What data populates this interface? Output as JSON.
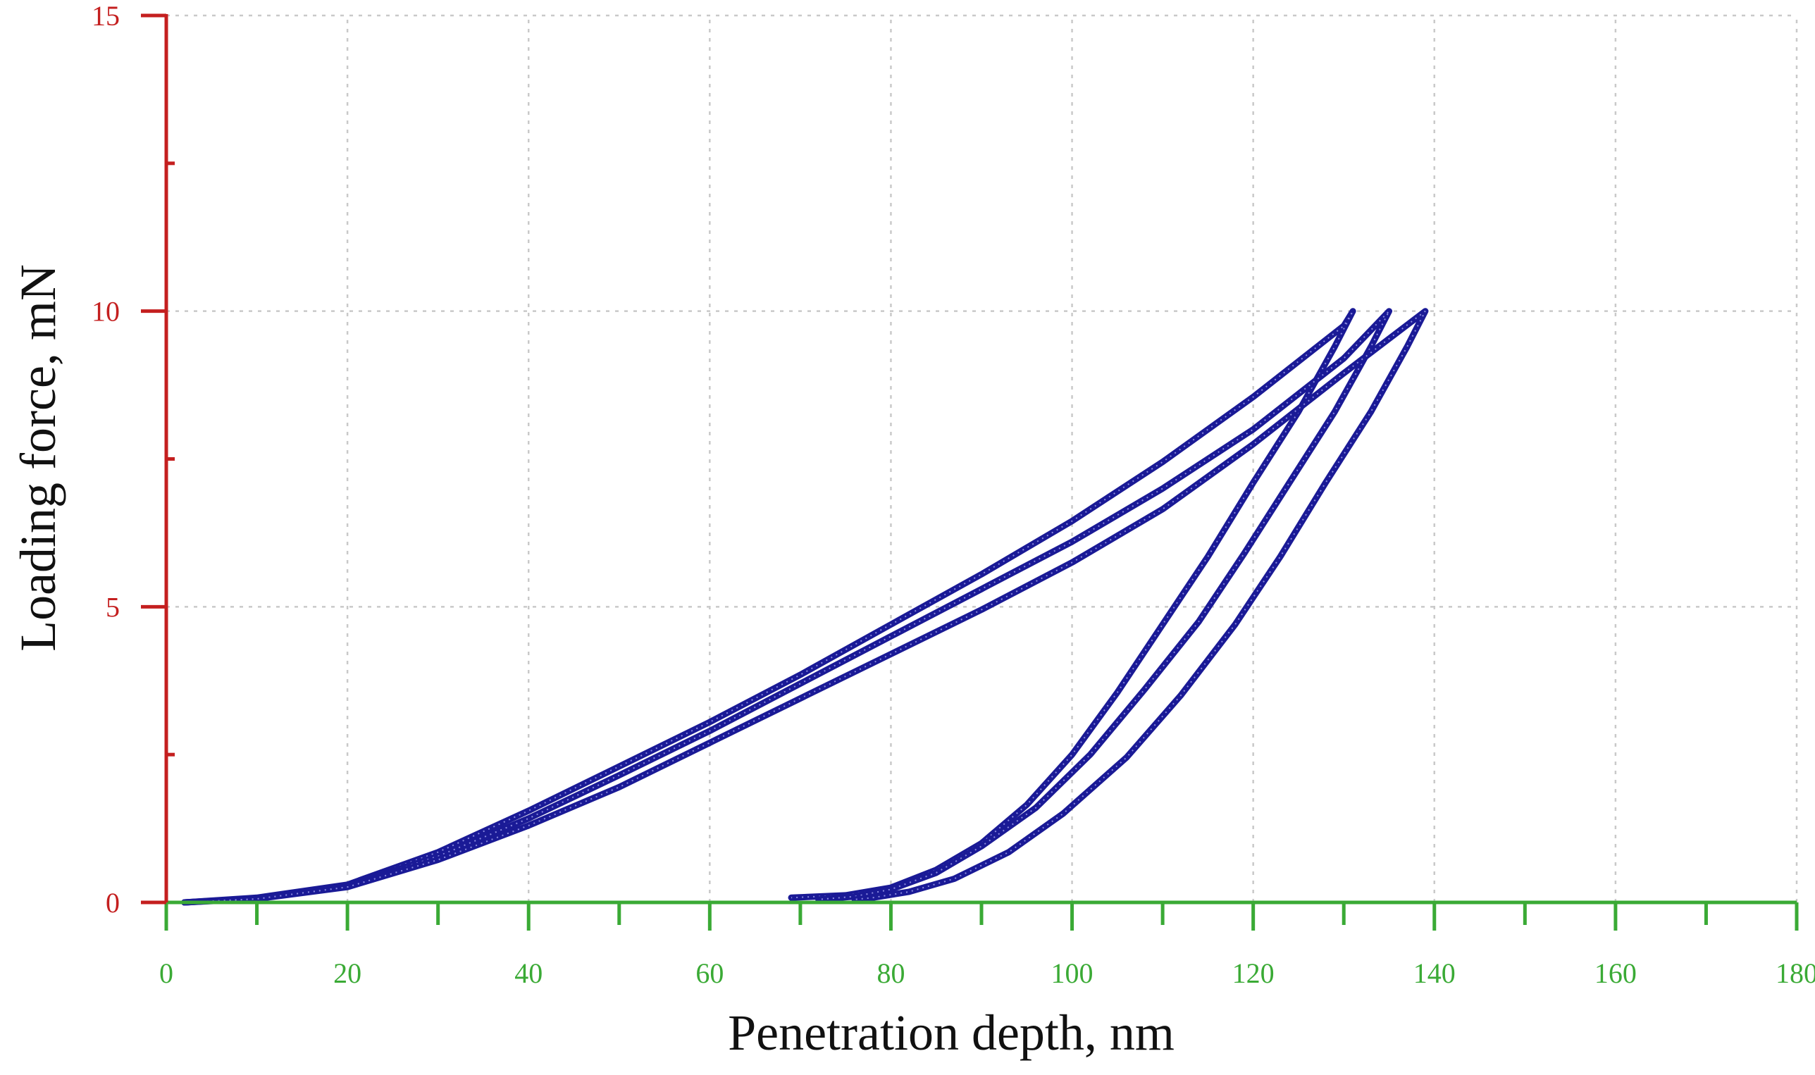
{
  "chart_data": {
    "type": "line",
    "title": "",
    "xlabel": "Penetration depth, nm",
    "ylabel": "Loading force, mN",
    "xlim": [
      0,
      180
    ],
    "ylim": [
      0,
      15
    ],
    "xticks_major": [
      0,
      20,
      40,
      60,
      80,
      100,
      120,
      140,
      160,
      180
    ],
    "xtick_labels": [
      "0",
      "20",
      "40",
      "60",
      "80",
      "100",
      "120",
      "140",
      "160",
      "180"
    ],
    "xticks_minor": [
      10,
      30,
      50,
      70,
      90,
      110,
      130,
      150,
      170
    ],
    "yticks_major": [
      0,
      5,
      10,
      15
    ],
    "ytick_labels": [
      "0",
      "5",
      "10",
      "15"
    ],
    "yticks_minor": [
      2.5,
      7.5,
      12.5
    ],
    "grid": true,
    "legend": "none",
    "colors": {
      "series": "#1a1a96",
      "x_axis": "#3aaa35",
      "y_axis": "#c41f1f",
      "grid": "#c9c9c9"
    },
    "series": [
      {
        "loading": [
          [
            2,
            0
          ],
          [
            10,
            0.08
          ],
          [
            20,
            0.3
          ],
          [
            30,
            0.85
          ],
          [
            40,
            1.55
          ],
          [
            50,
            2.3
          ],
          [
            60,
            3.05
          ],
          [
            70,
            3.85
          ],
          [
            80,
            4.7
          ],
          [
            90,
            5.55
          ],
          [
            100,
            6.45
          ],
          [
            110,
            7.45
          ],
          [
            120,
            8.55
          ],
          [
            130,
            9.75
          ],
          [
            131,
            10
          ]
        ],
        "unloading": [
          [
            131,
            10
          ],
          [
            129,
            9.4
          ],
          [
            125,
            8.3
          ],
          [
            120,
            7.1
          ],
          [
            115,
            5.85
          ],
          [
            110,
            4.7
          ],
          [
            105,
            3.55
          ],
          [
            100,
            2.5
          ],
          [
            95,
            1.65
          ],
          [
            90,
            1.0
          ],
          [
            85,
            0.55
          ],
          [
            80,
            0.25
          ],
          [
            75,
            0.12
          ],
          [
            69,
            0.08
          ]
        ]
      },
      {
        "loading": [
          [
            2,
            0
          ],
          [
            10,
            0.07
          ],
          [
            20,
            0.28
          ],
          [
            30,
            0.78
          ],
          [
            40,
            1.42
          ],
          [
            50,
            2.15
          ],
          [
            60,
            2.9
          ],
          [
            70,
            3.7
          ],
          [
            80,
            4.5
          ],
          [
            90,
            5.3
          ],
          [
            100,
            6.1
          ],
          [
            110,
            7.0
          ],
          [
            120,
            8.0
          ],
          [
            130,
            9.2
          ],
          [
            135,
            10
          ]
        ],
        "unloading": [
          [
            135,
            10
          ],
          [
            133,
            9.4
          ],
          [
            129,
            8.3
          ],
          [
            124,
            7.1
          ],
          [
            119,
            5.9
          ],
          [
            114,
            4.75
          ],
          [
            108,
            3.6
          ],
          [
            102,
            2.5
          ],
          [
            96,
            1.6
          ],
          [
            90,
            0.95
          ],
          [
            85,
            0.5
          ],
          [
            80,
            0.22
          ],
          [
            76,
            0.1
          ],
          [
            72,
            0.05
          ]
        ]
      },
      {
        "loading": [
          [
            2,
            0
          ],
          [
            10,
            0.06
          ],
          [
            20,
            0.26
          ],
          [
            30,
            0.72
          ],
          [
            40,
            1.3
          ],
          [
            50,
            1.95
          ],
          [
            60,
            2.7
          ],
          [
            70,
            3.45
          ],
          [
            80,
            4.2
          ],
          [
            90,
            4.95
          ],
          [
            100,
            5.75
          ],
          [
            110,
            6.65
          ],
          [
            120,
            7.75
          ],
          [
            130,
            8.95
          ],
          [
            139,
            10
          ]
        ],
        "unloading": [
          [
            139,
            10
          ],
          [
            137,
            9.4
          ],
          [
            133,
            8.3
          ],
          [
            128,
            7.1
          ],
          [
            123,
            5.85
          ],
          [
            118,
            4.7
          ],
          [
            112,
            3.5
          ],
          [
            106,
            2.45
          ],
          [
            99,
            1.5
          ],
          [
            93,
            0.85
          ],
          [
            87,
            0.4
          ],
          [
            82,
            0.18
          ],
          [
            78,
            0.08
          ],
          [
            76,
            0.05
          ]
        ]
      }
    ]
  }
}
